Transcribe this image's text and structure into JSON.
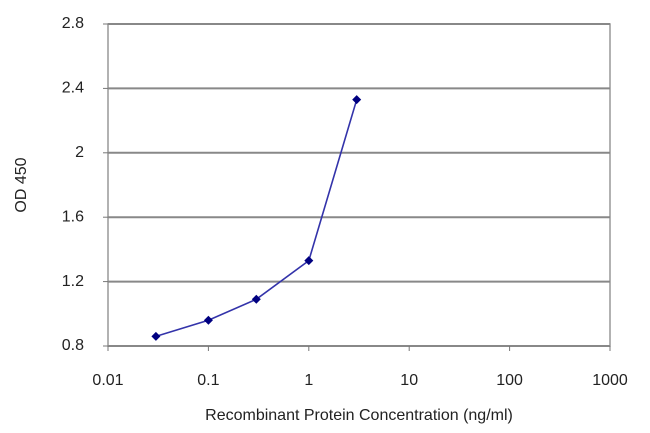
{
  "chart_data": {
    "type": "line",
    "xlabel": "Recombinant Protein Concentration (ng/ml)",
    "ylabel": "OD 450",
    "x": [
      0.03,
      0.1,
      0.3,
      1,
      3
    ],
    "values": [
      0.86,
      0.96,
      1.09,
      1.33,
      2.33
    ],
    "color": "#3333aa",
    "marker_color": "#000080",
    "log_x": true,
    "xlim": [
      0.01,
      1000
    ],
    "xticks": [
      0.01,
      0.1,
      1,
      10,
      100,
      1000
    ],
    "ylim": [
      0.8,
      2.8
    ],
    "yticks": [
      0.8,
      1.2,
      1.6,
      2,
      2.4,
      2.8
    ],
    "grid": true
  }
}
